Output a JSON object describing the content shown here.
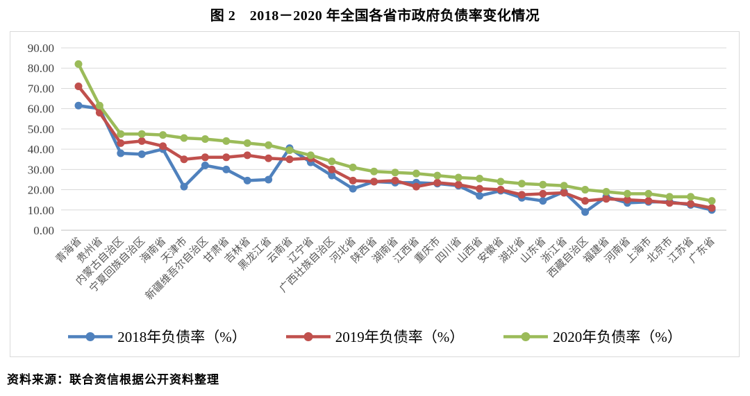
{
  "title": "图 2　2018－2020 年全国各省市政府负债率变化情况",
  "source": "资料来源：联合资信根据公开资料整理",
  "colors": {
    "grid": "#d9d9d9",
    "axis_line": "#bfbfbf",
    "y_tick_text": "#404040",
    "x_tick_text": "#595959"
  },
  "chart_data": {
    "type": "line",
    "title": "图 2　2018－2020 年全国各省市政府负债率变化情况",
    "xlabel": "",
    "ylabel": "",
    "ylim": [
      0,
      90
    ],
    "ytick_step": 10,
    "yticks": [
      "90.00",
      "80.00",
      "70.00",
      "60.00",
      "50.00",
      "40.00",
      "30.00",
      "20.00",
      "10.00",
      "0.00"
    ],
    "grid": true,
    "legend_position": "bottom",
    "categories": [
      "青海省",
      "贵州省",
      "内蒙古自治区",
      "宁夏回族自治区",
      "海南省",
      "天津市",
      "新疆维吾尔自治区",
      "甘肃省",
      "吉林省",
      "黑龙江省",
      "云南省",
      "辽宁省",
      "广西壮族自治区",
      "河北省",
      "陕西省",
      "湖南省",
      "江西省",
      "重庆市",
      "四川省",
      "山西省",
      "安徽省",
      "湖北省",
      "山东省",
      "浙江省",
      "西藏自治区",
      "福建省",
      "河南省",
      "上海市",
      "北京市",
      "江苏省",
      "广东省"
    ],
    "series": [
      {
        "name": "2018年负债率（%）",
        "color": "#4f81bd",
        "values": [
          61.5,
          60.0,
          38.0,
          37.5,
          40.0,
          21.5,
          32.0,
          30.0,
          24.5,
          25.0,
          40.5,
          33.5,
          27.0,
          20.5,
          24.0,
          23.5,
          23.5,
          23.0,
          22.0,
          17.0,
          19.5,
          16.0,
          14.5,
          19.0,
          9.0,
          16.5,
          13.5,
          14.0,
          14.0,
          12.5,
          10.0
        ]
      },
      {
        "name": "2019年负债率（%）",
        "color": "#c0504d",
        "values": [
          71.0,
          58.0,
          43.0,
          44.0,
          41.5,
          35.0,
          36.0,
          36.0,
          37.0,
          35.5,
          35.0,
          35.5,
          30.0,
          24.5,
          24.0,
          24.5,
          21.5,
          23.5,
          22.5,
          20.5,
          20.0,
          17.5,
          18.0,
          18.5,
          14.5,
          15.5,
          15.0,
          14.5,
          13.5,
          13.0,
          11.0
        ]
      },
      {
        "name": "2020年负债率（%）",
        "color": "#9bbb59",
        "values": [
          82.0,
          61.5,
          47.5,
          47.5,
          47.0,
          45.5,
          45.0,
          44.0,
          43.0,
          42.0,
          39.5,
          37.0,
          34.0,
          31.0,
          29.0,
          28.5,
          28.0,
          27.0,
          26.0,
          25.5,
          24.0,
          23.0,
          22.5,
          22.0,
          20.0,
          19.0,
          18.0,
          18.0,
          16.5,
          16.5,
          14.5
        ]
      }
    ]
  }
}
